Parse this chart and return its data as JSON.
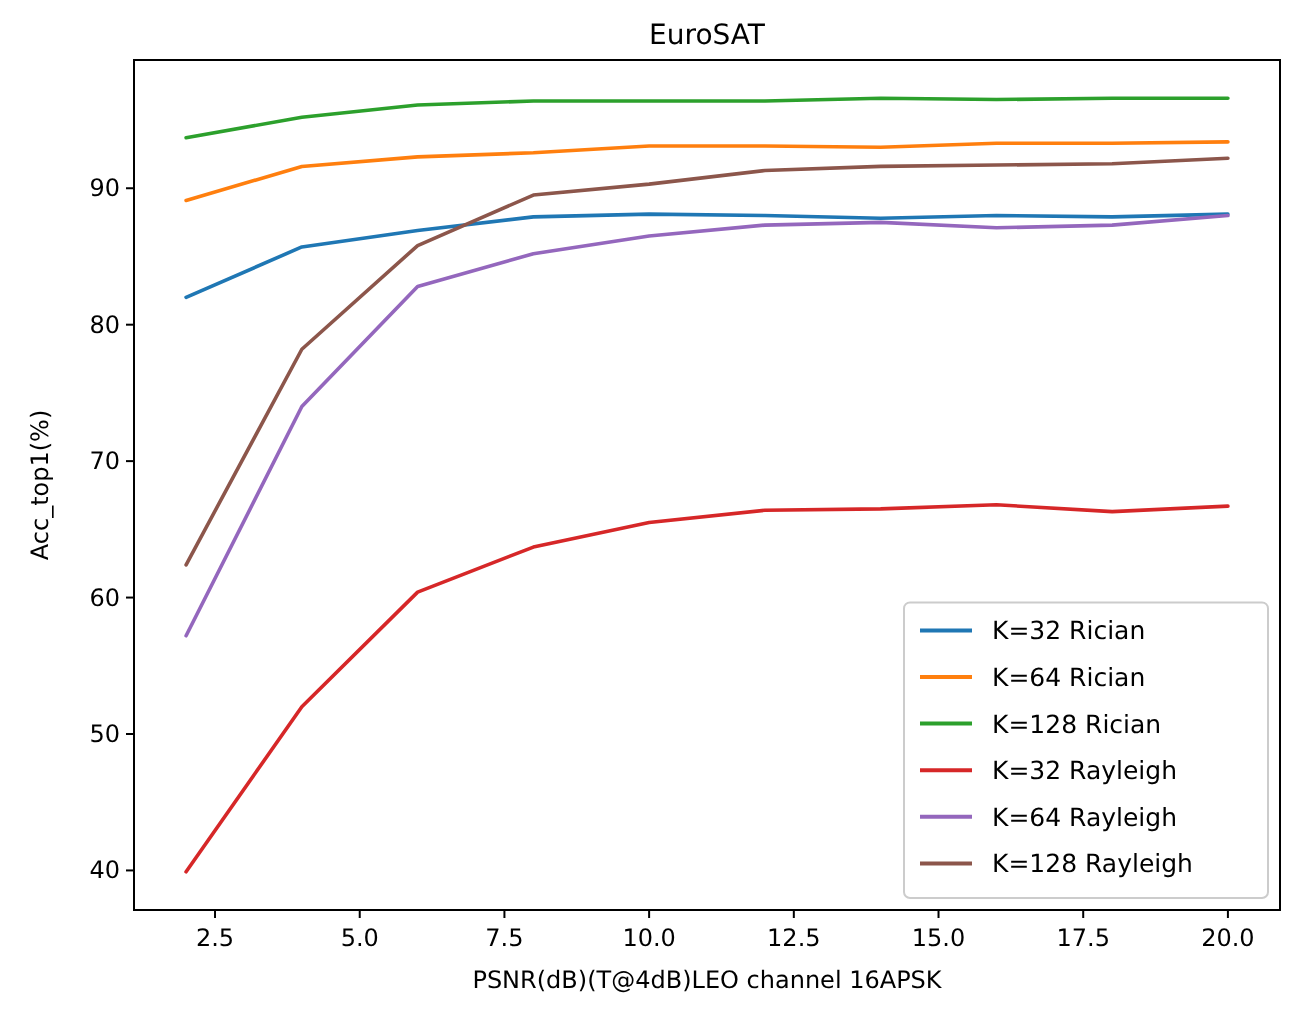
{
  "chart_data": {
    "type": "line",
    "title": "EuroSAT",
    "xlabel": "PSNR(dB)(T@4dB)LEO channel 16APSK",
    "ylabel": "Acc_top1(%)",
    "x": [
      2,
      4,
      6,
      8,
      10,
      12,
      14,
      16,
      18,
      20
    ],
    "xlim": [
      1.1,
      20.9
    ],
    "xticks": [
      {
        "value": 2.5,
        "label": "2.5"
      },
      {
        "value": 5,
        "label": "5.0"
      },
      {
        "value": 7.5,
        "label": "7.5"
      },
      {
        "value": 10,
        "label": "10.0"
      },
      {
        "value": 12.5,
        "label": "12.5"
      },
      {
        "value": 15,
        "label": "15.0"
      },
      {
        "value": 17.5,
        "label": "17.5"
      },
      {
        "value": 20,
        "label": "20.0"
      }
    ],
    "ylim": [
      37.1,
      99.4
    ],
    "yticks": [
      40,
      50,
      60,
      70,
      80,
      90
    ],
    "grid": false,
    "legend": "bottom right",
    "marker": "none",
    "line_style": "solid",
    "series": [
      {
        "name": "K=32 Rician",
        "color": "#1f77b4",
        "values": [
          82.0,
          85.7,
          86.9,
          87.9,
          88.1,
          88.0,
          87.8,
          88.0,
          87.9,
          88.1
        ]
      },
      {
        "name": "K=64 Rician",
        "color": "#ff7f0e",
        "values": [
          89.1,
          91.6,
          92.3,
          92.6,
          93.1,
          93.1,
          93.0,
          93.3,
          93.3,
          93.4
        ]
      },
      {
        "name": "K=128 Rician",
        "color": "#2ca02c",
        "values": [
          93.7,
          95.2,
          96.1,
          96.4,
          96.4,
          96.4,
          96.6,
          96.5,
          96.6,
          96.6
        ]
      },
      {
        "name": "K=32 Rayleigh",
        "color": "#d62728",
        "values": [
          39.9,
          52.0,
          60.4,
          63.7,
          65.5,
          66.4,
          66.5,
          66.8,
          66.3,
          66.7
        ]
      },
      {
        "name": "K=64 Rayleigh",
        "color": "#9467bd",
        "values": [
          57.2,
          74.0,
          82.8,
          85.2,
          86.5,
          87.3,
          87.5,
          87.1,
          87.3,
          88.0
        ]
      },
      {
        "name": "K=128 Rayleigh",
        "color": "#8c564b",
        "values": [
          62.4,
          78.2,
          85.8,
          89.5,
          90.3,
          91.3,
          91.6,
          91.7,
          91.8,
          92.2
        ]
      }
    ]
  }
}
